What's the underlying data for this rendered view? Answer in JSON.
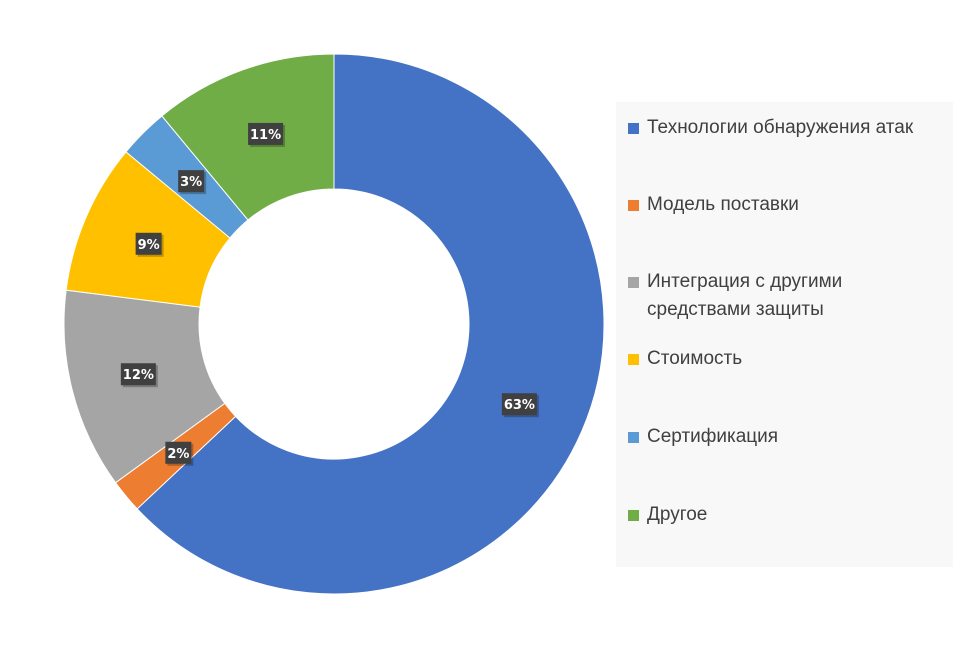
{
  "chart_data": {
    "type": "pie",
    "subtype": "donut",
    "title": "",
    "legend_position": "right",
    "categories": [
      "Технологии обнаружения атак",
      "Модель поставки",
      "Интеграция с другими средствами защиты",
      "Стоимость",
      "Сертификация",
      "Другое"
    ],
    "legend_lines": [
      [
        "Технологии обнаружения атак"
      ],
      [
        "Модель поставки"
      ],
      [
        "Интеграция с другими",
        "средствами защиты"
      ],
      [
        "Стоимость"
      ],
      [
        "Сертификация"
      ],
      [
        "Другое"
      ]
    ],
    "values": [
      63,
      2,
      12,
      9,
      3,
      11
    ],
    "data_labels": [
      "63%",
      "2%",
      "12%",
      "9%",
      "3%",
      "11%"
    ],
    "colors": [
      "#4472c4",
      "#ed7d31",
      "#a5a5a5",
      "#ffc000",
      "#5b9bd5",
      "#70ad47"
    ],
    "units": "%"
  }
}
